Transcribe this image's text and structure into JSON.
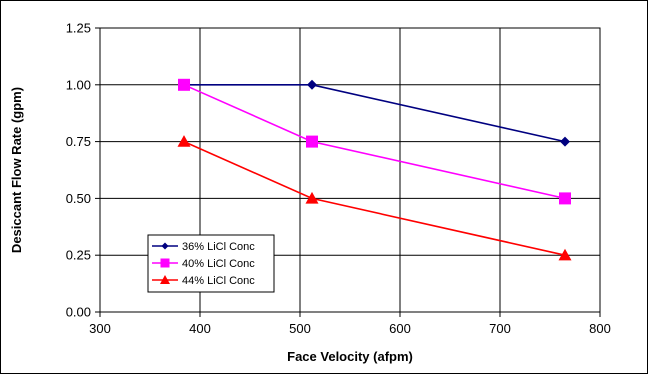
{
  "chart_data": {
    "type": "line",
    "xlabel": "Face Velocity (afpm)",
    "ylabel": "Desiccant Flow Rate (gpm)",
    "xlim": [
      300,
      800
    ],
    "ylim": [
      0,
      1.25
    ],
    "xticks": [
      "300",
      "400",
      "500",
      "600",
      "700",
      "800"
    ],
    "yticks": [
      "0.00",
      "0.25",
      "0.50",
      "0.75",
      "1.00",
      "1.25"
    ],
    "grid": true,
    "legend_position": "bottom-left",
    "series": [
      {
        "name": "36% LiCl Conc",
        "color": "#000080",
        "marker": "diamond",
        "x": [
          384,
          512,
          765
        ],
        "y": [
          1.0,
          1.0,
          0.75
        ]
      },
      {
        "name": "40% LiCl Conc",
        "color": "#FF00FF",
        "marker": "square",
        "x": [
          384,
          512,
          765
        ],
        "y": [
          1.0,
          0.75,
          0.5
        ]
      },
      {
        "name": "44% LiCl Conc",
        "color": "#FF0000",
        "marker": "triangle",
        "x": [
          384,
          512,
          765
        ],
        "y": [
          0.75,
          0.5,
          0.25
        ]
      }
    ]
  }
}
